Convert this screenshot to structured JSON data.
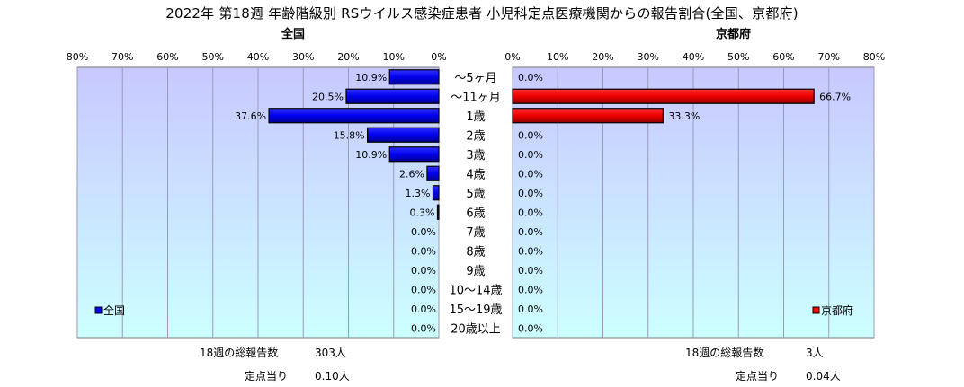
{
  "title": "2022年 第18週 年齢階級別 RSウイルス感染症患者 小児科定点医療機関からの報告割合(全国、京都府)",
  "colors": {
    "national": "#0000ff",
    "kyoto": "#ff0000",
    "plot_bg_top": "#c8c8ff",
    "plot_bg_bottom": "#ccffff"
  },
  "chart_data": [
    {
      "type": "bar",
      "orientation": "horizontal",
      "direction": "right-to-left",
      "title": "全国",
      "categories": [
        "〜5ヶ月",
        "〜11ヶ月",
        "1歳",
        "2歳",
        "3歳",
        "4歳",
        "5歳",
        "6歳",
        "7歳",
        "8歳",
        "9歳",
        "10〜14歳",
        "15〜19歳",
        "20歳以上"
      ],
      "series": [
        {
          "name": "全国",
          "values": [
            10.9,
            20.5,
            37.6,
            15.8,
            10.9,
            2.6,
            1.3,
            0.3,
            0.0,
            0.0,
            0.0,
            0.0,
            0.0,
            0.0
          ]
        }
      ],
      "data_labels": [
        "10.9%",
        "20.5%",
        "37.6%",
        "15.8%",
        "10.9%",
        "2.6%",
        "1.3%",
        "0.3%",
        "0.0%",
        "0.0%",
        "0.0%",
        "0.0%",
        "0.0%",
        "0.0%"
      ],
      "xlim": [
        0,
        80
      ],
      "ticks": [
        "80%",
        "70%",
        "60%",
        "50%",
        "40%",
        "30%",
        "20%",
        "10%",
        "0%"
      ],
      "grid": true,
      "legend_position": "bottom-left"
    },
    {
      "type": "bar",
      "orientation": "horizontal",
      "direction": "left-to-right",
      "title": "京都府",
      "categories": [
        "〜5ヶ月",
        "〜11ヶ月",
        "1歳",
        "2歳",
        "3歳",
        "4歳",
        "5歳",
        "6歳",
        "7歳",
        "8歳",
        "9歳",
        "10〜14歳",
        "15〜19歳",
        "20歳以上"
      ],
      "series": [
        {
          "name": "京都府",
          "values": [
            0.0,
            66.7,
            33.3,
            0.0,
            0.0,
            0.0,
            0.0,
            0.0,
            0.0,
            0.0,
            0.0,
            0.0,
            0.0,
            0.0
          ]
        }
      ],
      "data_labels": [
        "0.0%",
        "66.7%",
        "33.3%",
        "0.0%",
        "0.0%",
        "0.0%",
        "0.0%",
        "0.0%",
        "0.0%",
        "0.0%",
        "0.0%",
        "0.0%",
        "0.0%",
        "0.0%"
      ],
      "xlim": [
        0,
        80
      ],
      "ticks": [
        "0%",
        "10%",
        "20%",
        "30%",
        "40%",
        "50%",
        "60%",
        "70%",
        "80%"
      ],
      "grid": true,
      "legend_position": "bottom-right"
    }
  ],
  "footer": {
    "national": {
      "total_label": "18週の総報告数",
      "total_value": "303人",
      "per_label": "定点当り",
      "per_value": "0.10人"
    },
    "kyoto": {
      "total_label": "18週の総報告数",
      "total_value": "3人",
      "per_label": "定点当り",
      "per_value": "0.04人"
    }
  }
}
